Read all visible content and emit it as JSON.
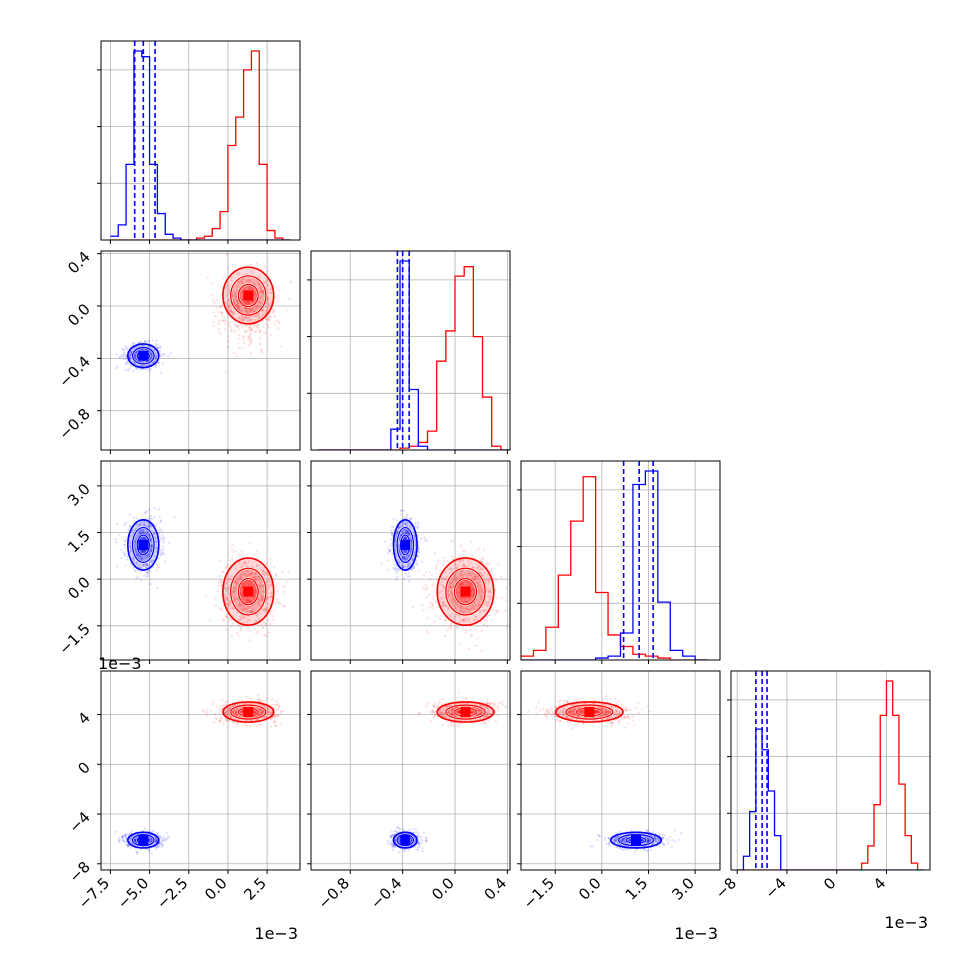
{
  "colors": {
    "blue": "#0000ff",
    "red": "#ff0000",
    "grid": "#b0b0b0",
    "axis": "#000000"
  },
  "chart_data": {
    "type": "corner",
    "grid": true,
    "parameters": [
      {
        "range": [
          -8.1,
          4.6
        ],
        "scale": 0.001,
        "ticks": [
          -7.5,
          -5.0,
          -2.5,
          0.0,
          2.5
        ],
        "tick_labels": [
          "−7.5",
          "−5.0",
          "−2.5",
          "0.0",
          "2.5"
        ],
        "offset_text": "1e−3"
      },
      {
        "range": [
          -1.1,
          0.42
        ],
        "scale": 1,
        "ticks": [
          -0.8,
          -0.4,
          0.0,
          0.4
        ],
        "tick_labels": [
          "−0.8",
          "−0.4",
          "0.0",
          "0.4"
        ],
        "offset_text": ""
      },
      {
        "range": [
          -2.6,
          3.8
        ],
        "scale": 0.001,
        "ticks": [
          -1.5,
          0.0,
          1.5,
          3.0
        ],
        "tick_labels": [
          "−1.5",
          "0.0",
          "1.5",
          "3.0"
        ],
        "offset_text": "1e−3"
      },
      {
        "range": [
          -8.5,
          7.5
        ],
        "scale": 0.001,
        "ticks": [
          -8,
          -4,
          0,
          4
        ],
        "tick_labels": [
          "−8",
          "−4",
          "0",
          "4"
        ],
        "offset_text": "1e−3"
      }
    ],
    "series": [
      {
        "color": "blue",
        "means": [
          -5.4,
          -0.38,
          1.1,
          -6.1
        ],
        "stds": [
          0.55,
          0.05,
          0.45,
          0.35
        ],
        "quantile_lines": [
          [
            -5.95,
            -5.4,
            -4.65
          ],
          [
            -0.44,
            -0.4,
            -0.35
          ],
          [
            0.7,
            1.2,
            1.65
          ],
          [
            -6.5,
            -6.0,
            -5.6
          ]
        ]
      },
      {
        "color": "red",
        "means": [
          1.3,
          0.08,
          -0.4,
          4.2
        ],
        "stds": [
          0.9,
          0.12,
          0.6,
          0.45
        ],
        "quantile_lines": null
      }
    ],
    "histograms": [
      {
        "bins": [
          -7.5,
          -7.0,
          -6.5,
          -6.0,
          -5.5,
          -5.0,
          -4.5,
          -4.0,
          -3.5,
          -3.0,
          -2.5,
          -2.0,
          -1.5,
          -1.0,
          -0.5,
          0.0,
          0.5,
          1.0,
          1.5,
          2.0,
          2.5,
          3.0,
          3.5,
          4.0
        ],
        "blue": [
          0.02,
          0.08,
          0.4,
          1.0,
          0.97,
          0.4,
          0.14,
          0.03,
          0.01,
          0,
          0,
          0,
          0,
          0,
          0,
          0,
          0,
          0,
          0,
          0,
          0,
          0,
          0
        ],
        "red": [
          0,
          0,
          0,
          0,
          0,
          0,
          0,
          0,
          0,
          0,
          0,
          0.01,
          0.02,
          0.06,
          0.15,
          0.5,
          0.65,
          0.9,
          1.0,
          0.4,
          0.05,
          0.01,
          0
        ]
      },
      {
        "bins": [
          -1.05,
          -0.98,
          -0.91,
          -0.84,
          -0.77,
          -0.7,
          -0.63,
          -0.56,
          -0.49,
          -0.42,
          -0.35,
          -0.28,
          -0.21,
          -0.14,
          -0.07,
          0.0,
          0.07,
          0.14,
          0.21,
          0.28,
          0.35,
          0.42
        ],
        "blue": [
          0,
          0,
          0,
          0,
          0,
          0,
          0,
          0,
          0.11,
          1.0,
          0.32,
          0.02,
          0,
          0,
          0,
          0,
          0,
          0,
          0,
          0,
          0
        ],
        "red": [
          0,
          0,
          0,
          0,
          0,
          0,
          0,
          0,
          0,
          0.01,
          0.02,
          0.04,
          0.1,
          0.47,
          0.63,
          0.92,
          0.97,
          0.6,
          0.28,
          0.02,
          0
        ]
      },
      {
        "bins": [
          -2.6,
          -2.2,
          -1.8,
          -1.4,
          -1.0,
          -0.6,
          -0.2,
          0.2,
          0.6,
          1.0,
          1.4,
          1.8,
          2.2,
          2.6,
          3.0,
          3.4
        ],
        "blue": [
          0,
          0,
          0,
          0,
          0,
          0,
          0.01,
          0.02,
          0.14,
          0.91,
          0.98,
          0.3,
          0.05,
          0.02,
          0
        ],
        "red": [
          0.02,
          0.05,
          0.17,
          0.44,
          0.72,
          0.95,
          0.35,
          0.13,
          0.07,
          0.03,
          0.02,
          0.01,
          0,
          0,
          0
        ]
      },
      {
        "bins": [
          -8.0,
          -7.5,
          -7.0,
          -6.5,
          -6.0,
          -5.5,
          -5.0,
          -4.5,
          -4.0,
          -3.5,
          -3.0,
          -2.5,
          -2.0,
          -1.5,
          -1.0,
          -0.5,
          0.0,
          0.5,
          1.0,
          1.5,
          2.0,
          2.5,
          3.0,
          3.5,
          4.0,
          4.5,
          5.0,
          5.5,
          6.0,
          6.5,
          7.0
        ],
        "blue": [
          0,
          0.04,
          0.17,
          0.41,
          0.35,
          0.23,
          0.1,
          0,
          0,
          0,
          0,
          0,
          0,
          0,
          0,
          0,
          0,
          0,
          0,
          0,
          0,
          0,
          0,
          0,
          0,
          0,
          0,
          0,
          0,
          0
        ],
        "red": [
          0,
          0,
          0,
          0,
          0,
          0,
          0,
          0,
          0,
          0,
          0,
          0,
          0,
          0,
          0,
          0,
          0,
          0,
          0,
          0,
          0.02,
          0.07,
          0.19,
          0.45,
          0.55,
          0.45,
          0.25,
          0.1,
          0.02,
          0
        ]
      }
    ]
  }
}
